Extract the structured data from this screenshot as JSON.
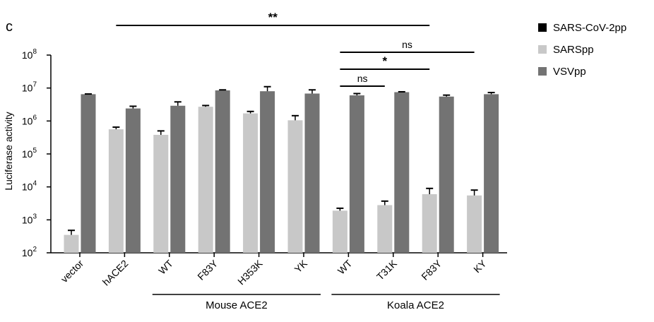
{
  "panel_label": "c",
  "chart_data": {
    "type": "bar",
    "ylabel": "Luciferase activity",
    "yscale": "log",
    "ylim": [
      100,
      100000000
    ],
    "y_ticks": [
      {
        "value": 100,
        "base": "10",
        "exp": "2"
      },
      {
        "value": 1000,
        "base": "10",
        "exp": "3"
      },
      {
        "value": 10000,
        "base": "10",
        "exp": "4"
      },
      {
        "value": 100000,
        "base": "10",
        "exp": "5"
      },
      {
        "value": 1000000,
        "base": "10",
        "exp": "6"
      },
      {
        "value": 10000000,
        "base": "10",
        "exp": "7"
      },
      {
        "value": 100000000,
        "base": "10",
        "exp": "8"
      }
    ],
    "categories": [
      "vector",
      "hACE2",
      "WT",
      "F83Y",
      "H353K",
      "YK",
      "WT",
      "T31K",
      "F83Y",
      "KY"
    ],
    "series": [
      {
        "name": "SARS-CoV-2pp",
        "color": "#000000",
        "values": [
          null,
          null,
          null,
          null,
          null,
          null,
          null,
          null,
          null,
          null
        ],
        "errors": [
          null,
          null,
          null,
          null,
          null,
          null,
          null,
          null,
          null,
          null
        ]
      },
      {
        "name": "SARSpp",
        "color": "#c8c8c8",
        "values": [
          350,
          560000,
          380000,
          2700000,
          1700000,
          1050000,
          1900,
          2800,
          6000,
          5500
        ],
        "errors": [
          480,
          650000,
          500000,
          2950000,
          1950000,
          1450000,
          2250,
          3700,
          9000,
          8000
        ]
      },
      {
        "name": "VSVpp",
        "color": "#737373",
        "values": [
          6500000,
          2400000,
          2900000,
          8500000,
          8000000,
          6800000,
          6000000,
          7500000,
          5500000,
          6500000
        ],
        "errors": [
          6600000,
          2800000,
          3800000,
          8800000,
          11000000,
          8800000,
          6800000,
          7700000,
          6100000,
          7300000
        ]
      }
    ],
    "groups": [
      {
        "label": "Mouse ACE2",
        "from": 2,
        "to": 5
      },
      {
        "label": "Koala ACE2",
        "from": 6,
        "to": 9
      }
    ],
    "significance": [
      {
        "label": "**",
        "from": 1,
        "to": 8,
        "y": 36
      },
      {
        "label": "ns",
        "from": 6,
        "to": 9,
        "y": 74
      },
      {
        "label": "*",
        "from": 6,
        "to": 8,
        "y": 98
      },
      {
        "label": "ns",
        "from": 6,
        "to": 7,
        "y": 122
      }
    ],
    "legend": "top-right",
    "grid": false
  }
}
